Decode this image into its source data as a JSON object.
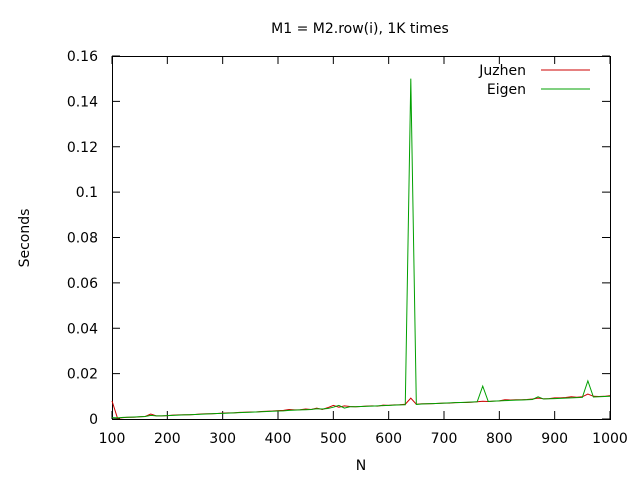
{
  "chart_data": {
    "type": "line",
    "title": "M1 = M2.row(i), 1K times",
    "xlabel": "N",
    "ylabel": "Seconds",
    "xlim": [
      100,
      1000
    ],
    "ylim": [
      0,
      0.16
    ],
    "xticks": [
      100,
      200,
      300,
      400,
      500,
      600,
      700,
      800,
      900,
      1000
    ],
    "yticks": [
      0,
      0.02,
      0.04,
      0.06,
      0.08,
      0.1,
      0.12,
      0.14,
      0.16
    ],
    "xtick_labels": [
      "100",
      "200",
      "300",
      "400",
      "500",
      "600",
      "700",
      "800",
      "900",
      "1000"
    ],
    "ytick_labels": [
      "0",
      "0.02",
      "0.04",
      "0.06",
      "0.08",
      "0.1",
      "0.12",
      "0.14",
      "0.16"
    ],
    "grid": false,
    "legend_position": "top-right",
    "x": [
      100,
      110,
      120,
      130,
      140,
      150,
      160,
      170,
      180,
      190,
      200,
      210,
      220,
      230,
      240,
      250,
      260,
      270,
      280,
      290,
      300,
      310,
      320,
      330,
      340,
      350,
      360,
      370,
      380,
      390,
      400,
      410,
      420,
      430,
      440,
      450,
      460,
      470,
      480,
      490,
      500,
      510,
      520,
      530,
      540,
      550,
      560,
      570,
      580,
      590,
      600,
      610,
      620,
      630,
      640,
      650,
      660,
      670,
      680,
      690,
      700,
      710,
      720,
      730,
      740,
      750,
      760,
      770,
      780,
      790,
      800,
      810,
      820,
      830,
      840,
      850,
      860,
      870,
      880,
      890,
      900,
      910,
      920,
      930,
      940,
      950,
      960,
      970,
      980,
      990,
      1000
    ],
    "series": [
      {
        "name": "Juzhen",
        "color": "#cc0000",
        "values": [
          0.008,
          0.0003,
          0.0006,
          0.0008,
          0.0008,
          0.001,
          0.0011,
          0.0022,
          0.0014,
          0.0014,
          0.0015,
          0.0017,
          0.0018,
          0.0019,
          0.0019,
          0.002,
          0.0022,
          0.0023,
          0.0023,
          0.0024,
          0.0026,
          0.0027,
          0.0027,
          0.0029,
          0.003,
          0.0031,
          0.0031,
          0.0033,
          0.0034,
          0.0035,
          0.0037,
          0.0038,
          0.0042,
          0.004,
          0.0041,
          0.0044,
          0.0042,
          0.0048,
          0.0042,
          0.005,
          0.006,
          0.0052,
          0.0058,
          0.0055,
          0.0054,
          0.0055,
          0.0057,
          0.0058,
          0.0057,
          0.0061,
          0.006,
          0.0062,
          0.0063,
          0.0065,
          0.0092,
          0.0065,
          0.0067,
          0.0067,
          0.0068,
          0.0069,
          0.007,
          0.007,
          0.0072,
          0.0073,
          0.0073,
          0.0074,
          0.0076,
          0.0078,
          0.0077,
          0.0079,
          0.008,
          0.0085,
          0.0084,
          0.0085,
          0.0085,
          0.0086,
          0.0088,
          0.0092,
          0.0089,
          0.009,
          0.0093,
          0.0093,
          0.0095,
          0.0098,
          0.0096,
          0.0098,
          0.011,
          0.01,
          0.0099,
          0.01,
          0.0103
        ]
      },
      {
        "name": "Eigen",
        "color": "#00a000",
        "values": [
          0.0006,
          0.0005,
          0.0007,
          0.0008,
          0.0009,
          0.001,
          0.0011,
          0.0016,
          0.0014,
          0.0014,
          0.0015,
          0.0016,
          0.0017,
          0.0018,
          0.0019,
          0.002,
          0.0021,
          0.0022,
          0.0023,
          0.0024,
          0.0025,
          0.0026,
          0.0027,
          0.0028,
          0.0029,
          0.003,
          0.0031,
          0.0032,
          0.0033,
          0.0034,
          0.0035,
          0.0036,
          0.0038,
          0.0039,
          0.004,
          0.0041,
          0.0042,
          0.0045,
          0.0044,
          0.0046,
          0.0052,
          0.006,
          0.0048,
          0.0054,
          0.0054,
          0.0055,
          0.0056,
          0.0057,
          0.0058,
          0.0059,
          0.006,
          0.0061,
          0.0062,
          0.0063,
          0.15,
          0.0064,
          0.0066,
          0.0067,
          0.0068,
          0.0069,
          0.007,
          0.0071,
          0.0072,
          0.0073,
          0.0074,
          0.0075,
          0.0076,
          0.0145,
          0.0077,
          0.0079,
          0.008,
          0.0081,
          0.0082,
          0.0083,
          0.0084,
          0.0085,
          0.0086,
          0.0098,
          0.0088,
          0.0089,
          0.009,
          0.0091,
          0.0092,
          0.0093,
          0.0094,
          0.0095,
          0.0168,
          0.0097,
          0.0098,
          0.0099,
          0.01
        ]
      }
    ]
  }
}
